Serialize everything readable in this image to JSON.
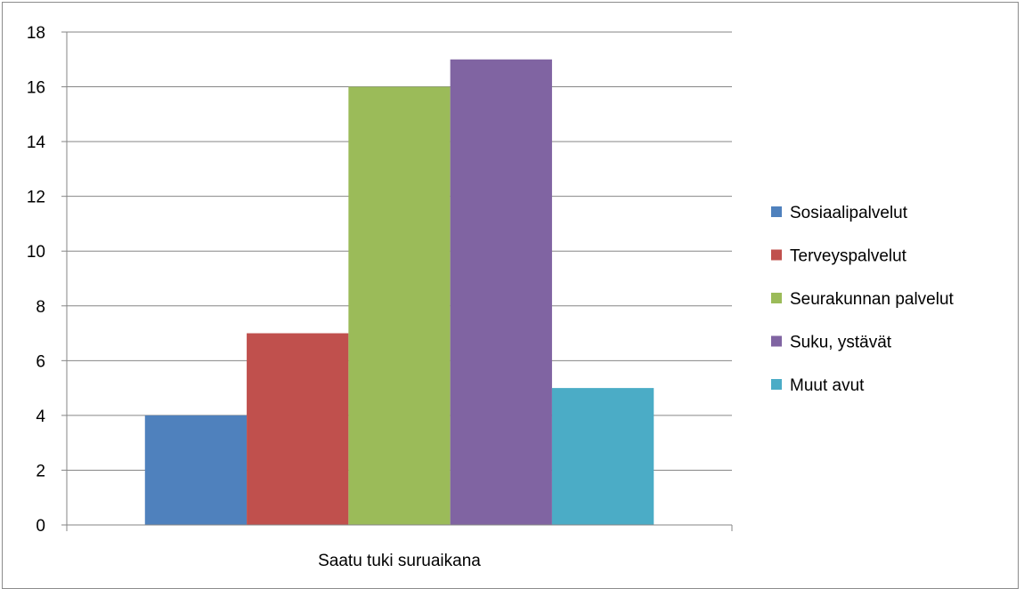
{
  "chart_data": {
    "type": "bar",
    "title": "",
    "xlabel": "",
    "ylabel": "",
    "categories": [
      "Saatu tuki suruaikana"
    ],
    "series": [
      {
        "name": "Sosiaalipalvelut",
        "values": [
          4
        ],
        "color": "#4f81bd"
      },
      {
        "name": "Terveyspalvelut",
        "values": [
          7
        ],
        "color": "#c0504d"
      },
      {
        "name": "Seurakunnan palvelut",
        "values": [
          16
        ],
        "color": "#9bbb59"
      },
      {
        "name": "Suku, ystävät",
        "values": [
          17
        ],
        "color": "#8064a2"
      },
      {
        "name": "Muut avut",
        "values": [
          5
        ],
        "color": "#4bacc6"
      }
    ],
    "ylim": [
      0,
      18
    ],
    "yticks": [
      0,
      2,
      4,
      6,
      8,
      10,
      12,
      14,
      16,
      18
    ],
    "grid": true,
    "legend_position": "right"
  }
}
